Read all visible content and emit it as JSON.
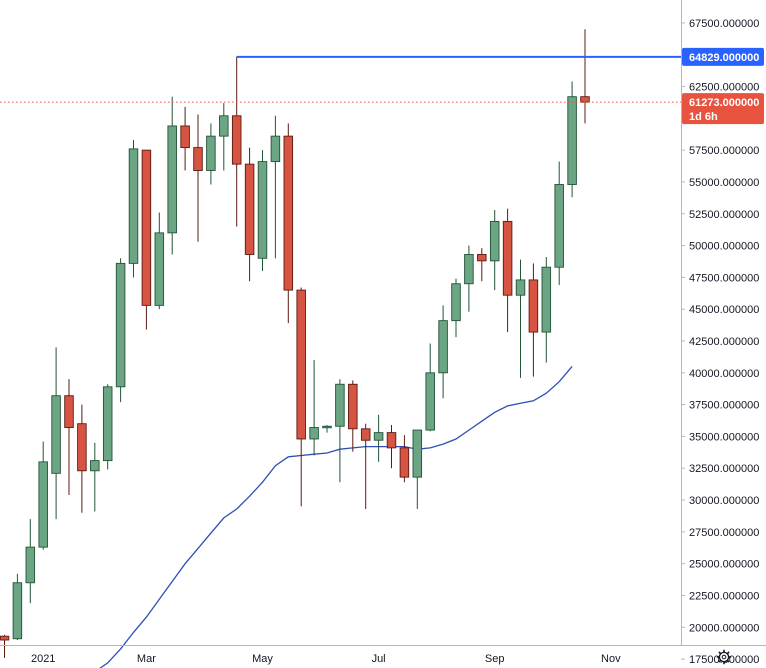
{
  "colors": {
    "up_body": "#6ba583",
    "up_border": "#225437",
    "down_body": "#d75442",
    "down_border": "#5b1a13",
    "ma_line": "#2e4fb5",
    "hline": "#2962ff",
    "last_price": "#e8533f",
    "grid": "#e6e9ee",
    "axis_border": "#b2b5be"
  },
  "settings_icon": "gear-icon",
  "chart_data": {
    "type": "candlestick",
    "interval": "weekly",
    "y_axis": {
      "ylim": [
        16800,
        69300
      ],
      "ticks": [
        "17500.000000",
        "20000.000000",
        "22500.000000",
        "25000.000000",
        "27500.000000",
        "30000.000000",
        "32500.000000",
        "35000.000000",
        "37500.000000",
        "40000.000000",
        "42500.000000",
        "45000.000000",
        "47500.000000",
        "50000.000000",
        "52500.000000",
        "55000.000000",
        "57500.000000",
        "60000.000000",
        "62500.000000",
        "65000.000000",
        "67500.000000"
      ]
    },
    "x_axis": {
      "labels": [
        {
          "text": "2021",
          "bar": 3
        },
        {
          "text": "Mar",
          "bar": 11
        },
        {
          "text": "May",
          "bar": 20
        },
        {
          "text": "Jul",
          "bar": 29
        },
        {
          "text": "Sep",
          "bar": 38
        },
        {
          "text": "Nov",
          "bar": 47
        }
      ]
    },
    "candles": [
      {
        "o": 19300,
        "h": 19400,
        "l": 17600,
        "c": 19000
      },
      {
        "o": 19100,
        "h": 24200,
        "l": 19000,
        "c": 23500
      },
      {
        "o": 23500,
        "h": 28500,
        "l": 21900,
        "c": 26300
      },
      {
        "o": 26300,
        "h": 34600,
        "l": 26100,
        "c": 33000
      },
      {
        "o": 32100,
        "h": 42000,
        "l": 28500,
        "c": 38200
      },
      {
        "o": 38200,
        "h": 39500,
        "l": 30400,
        "c": 35700
      },
      {
        "o": 36000,
        "h": 37500,
        "l": 29000,
        "c": 32300
      },
      {
        "o": 32300,
        "h": 34500,
        "l": 29100,
        "c": 33100
      },
      {
        "o": 33100,
        "h": 39100,
        "l": 32400,
        "c": 38900
      },
      {
        "o": 38900,
        "h": 49000,
        "l": 37700,
        "c": 48600
      },
      {
        "o": 48600,
        "h": 58300,
        "l": 47500,
        "c": 57600
      },
      {
        "o": 57500,
        "h": 57500,
        "l": 43400,
        "c": 45300
      },
      {
        "o": 45300,
        "h": 52600,
        "l": 45000,
        "c": 51000
      },
      {
        "o": 51000,
        "h": 61700,
        "l": 49300,
        "c": 59400
      },
      {
        "o": 59400,
        "h": 60900,
        "l": 55900,
        "c": 57700
      },
      {
        "o": 57700,
        "h": 60300,
        "l": 50300,
        "c": 55900
      },
      {
        "o": 55900,
        "h": 59600,
        "l": 54800,
        "c": 58600
      },
      {
        "o": 58600,
        "h": 61200,
        "l": 55900,
        "c": 60200
      },
      {
        "o": 60200,
        "h": 64850,
        "l": 51500,
        "c": 56400
      },
      {
        "o": 56400,
        "h": 57700,
        "l": 47200,
        "c": 49300
      },
      {
        "o": 49000,
        "h": 57500,
        "l": 48000,
        "c": 56600
      },
      {
        "o": 56600,
        "h": 60200,
        "l": 49000,
        "c": 58600
      },
      {
        "o": 58600,
        "h": 59600,
        "l": 43900,
        "c": 46500
      },
      {
        "o": 46500,
        "h": 46700,
        "l": 29500,
        "c": 34800
      },
      {
        "o": 34800,
        "h": 41000,
        "l": 33500,
        "c": 35700
      },
      {
        "o": 35700,
        "h": 35900,
        "l": 35300,
        "c": 35800
      },
      {
        "o": 35800,
        "h": 39500,
        "l": 31400,
        "c": 39100
      },
      {
        "o": 39100,
        "h": 39400,
        "l": 33800,
        "c": 35600
      },
      {
        "o": 35600,
        "h": 36000,
        "l": 29300,
        "c": 34700
      },
      {
        "o": 34700,
        "h": 36700,
        "l": 33000,
        "c": 35300
      },
      {
        "o": 35300,
        "h": 35900,
        "l": 32500,
        "c": 34100
      },
      {
        "o": 34100,
        "h": 35100,
        "l": 31400,
        "c": 31800
      },
      {
        "o": 31800,
        "h": 35500,
        "l": 29300,
        "c": 35500
      },
      {
        "o": 35500,
        "h": 42300,
        "l": 35400,
        "c": 40000
      },
      {
        "o": 40000,
        "h": 45300,
        "l": 38000,
        "c": 44100
      },
      {
        "o": 44100,
        "h": 47400,
        "l": 42800,
        "c": 47000
      },
      {
        "o": 47000,
        "h": 50000,
        "l": 44800,
        "c": 49300
      },
      {
        "o": 49300,
        "h": 49800,
        "l": 47200,
        "c": 48800
      },
      {
        "o": 48800,
        "h": 52800,
        "l": 46500,
        "c": 51900
      },
      {
        "o": 51900,
        "h": 52900,
        "l": 43200,
        "c": 46100
      },
      {
        "o": 46100,
        "h": 48900,
        "l": 39600,
        "c": 47300
      },
      {
        "o": 47300,
        "h": 48600,
        "l": 39700,
        "c": 43200
      },
      {
        "o": 43200,
        "h": 49100,
        "l": 40800,
        "c": 48300
      },
      {
        "o": 48300,
        "h": 56600,
        "l": 46900,
        "c": 54800
      },
      {
        "o": 54800,
        "h": 62900,
        "l": 53800,
        "c": 61700
      },
      {
        "o": 61700,
        "h": 67000,
        "l": 59600,
        "c": 61273
      }
    ],
    "moving_average": [
      {
        "bar": 7,
        "v": 16500
      },
      {
        "bar": 8,
        "v": 17200
      },
      {
        "bar": 9,
        "v": 18300
      },
      {
        "bar": 10,
        "v": 19600
      },
      {
        "bar": 11,
        "v": 20800
      },
      {
        "bar": 12,
        "v": 22200
      },
      {
        "bar": 13,
        "v": 23600
      },
      {
        "bar": 14,
        "v": 25000
      },
      {
        "bar": 15,
        "v": 26200
      },
      {
        "bar": 16,
        "v": 27400
      },
      {
        "bar": 17,
        "v": 28600
      },
      {
        "bar": 18,
        "v": 29300
      },
      {
        "bar": 19,
        "v": 30300
      },
      {
        "bar": 20,
        "v": 31400
      },
      {
        "bar": 21,
        "v": 32700
      },
      {
        "bar": 22,
        "v": 33400
      },
      {
        "bar": 23,
        "v": 33500
      },
      {
        "bar": 24,
        "v": 33600
      },
      {
        "bar": 25,
        "v": 33700
      },
      {
        "bar": 26,
        "v": 34000
      },
      {
        "bar": 27,
        "v": 34100
      },
      {
        "bar": 28,
        "v": 34200
      },
      {
        "bar": 29,
        "v": 34200
      },
      {
        "bar": 30,
        "v": 34200
      },
      {
        "bar": 31,
        "v": 34200
      },
      {
        "bar": 32,
        "v": 34000
      },
      {
        "bar": 33,
        "v": 34100
      },
      {
        "bar": 34,
        "v": 34400
      },
      {
        "bar": 35,
        "v": 34800
      },
      {
        "bar": 36,
        "v": 35500
      },
      {
        "bar": 37,
        "v": 36200
      },
      {
        "bar": 38,
        "v": 36900
      },
      {
        "bar": 39,
        "v": 37400
      },
      {
        "bar": 40,
        "v": 37600
      },
      {
        "bar": 41,
        "v": 37800
      },
      {
        "bar": 42,
        "v": 38400
      },
      {
        "bar": 43,
        "v": 39300
      },
      {
        "bar": 44,
        "v": 40500
      }
    ],
    "horizontal_line": {
      "value": 64829,
      "label": "64829.000000",
      "start_bar": 18
    },
    "last_price": {
      "value": 61273,
      "label": "61273.000000",
      "countdown": "1d 6h"
    }
  }
}
